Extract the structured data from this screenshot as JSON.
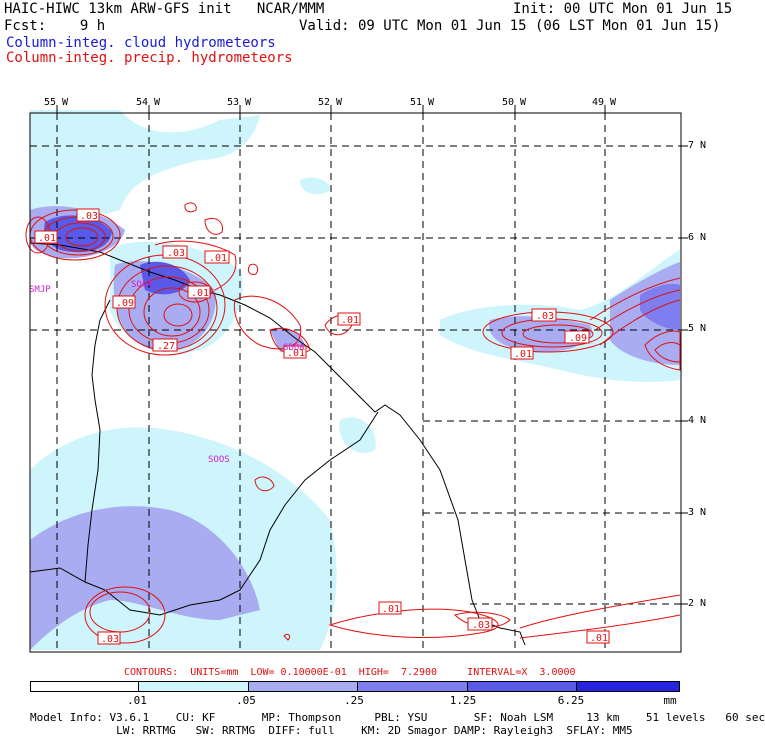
{
  "header": {
    "model_line": "HAIC-HIWC 13km ARW-GFS init   NCAR/MMM",
    "init_line": "Init: 00 UTC Mon 01 Jun 15",
    "fcst_line": "Fcst:    9 h",
    "valid_line": "Valid: 09 UTC Mon 01 Jun 15 (06 LST Mon 01 Jun 15)",
    "field_cloud": "Column-integ. cloud hydrometeors",
    "field_precip": "Column-integ. precip. hydrometeors"
  },
  "axes": {
    "lon_labels": [
      "55 W",
      "54 W",
      "53 W",
      "52 W",
      "51 W",
      "50 W",
      "49 W"
    ],
    "lat_labels": [
      "7 N",
      "6 N",
      "5 N",
      "4 N",
      "3 N",
      "2 N"
    ]
  },
  "map_labels": {
    "stations": [
      "SMJP",
      "SOCA",
      "SBOA",
      "SOOS"
    ],
    "contour_labels": [
      ".03",
      ".01",
      ".03",
      ".01",
      ".09",
      ".01",
      ".27",
      ".01",
      ".01",
      ".03",
      ".09",
      ".01",
      ".01",
      ".03",
      ".03",
      ".01"
    ]
  },
  "contours_line": "CONTOURS:  UNITS=mm  LOW= 0.10000E-01  HIGH=  7.2900     INTERVAL=X  3.0000",
  "legend": {
    "ticks": [
      ".01",
      ".05",
      ".25",
      "1.25",
      "6.25"
    ],
    "units": "mm",
    "colors": [
      "#ffffff",
      "#cdf5fb",
      "#a9acf0",
      "#7e7ef0",
      "#5a5ae8",
      "#2525e0"
    ]
  },
  "info": {
    "line1": "Model Info: V3.6.1    CU: KF       MP: Thompson     PBL: YSU       SF: Noah LSM     13 km    51 levels   60 sec",
    "line2": "             LW: RRTMG   SW: RRTMG  DIFF: full    KM: 2D Smagor DAMP: Rayleigh3  SFLAY: MM5"
  },
  "colors": {
    "cloud_light": "#cdf5fb",
    "cloud_mid": "#a9acf0",
    "cloud_dark": "#5a5ae8",
    "precip_contour": "#e01010",
    "station_label": "#d020d0"
  }
}
